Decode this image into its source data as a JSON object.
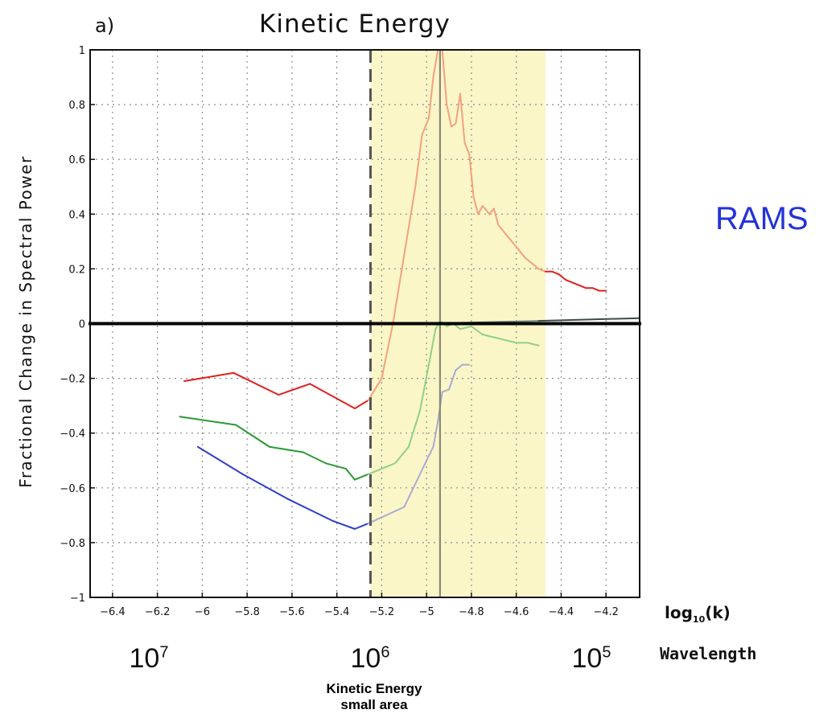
{
  "chart_data": {
    "type": "line",
    "panel_label": "a)",
    "title": "Kinetic Energy",
    "ylabel": "Fractional Change in Spectral Power",
    "xlabel": "log10(k)",
    "ylim": [
      -1,
      1
    ],
    "xlim": [
      -6.5,
      -4.05
    ],
    "yticks": [
      "1",
      "0.8",
      "0.6",
      "0.4",
      "0.2",
      "0",
      "−0.2",
      "−0.4",
      "−0.6",
      "−0.8",
      "−1"
    ],
    "xticks": [
      "−6.4",
      "−6.2",
      "−6",
      "−5.8",
      "−5.6",
      "−5.4",
      "−5.2",
      "−5",
      "−4.8",
      "−4.6",
      "−4.4",
      "−4.2"
    ],
    "grid": true,
    "highlight_band": {
      "x_start": -5.25,
      "x_end": -4.47,
      "color": "#fbf6c8"
    },
    "dashed_vline": -5.25,
    "solid_vline": -4.94,
    "wavelength_axis": {
      "label": "Wavelength",
      "ticks": [
        {
          "x": -7.0,
          "base": "10",
          "exp": "7"
        },
        {
          "x": -6.0,
          "base": "10",
          "exp": "6"
        },
        {
          "x": -5.0,
          "base": "10",
          "exp": "5"
        }
      ]
    },
    "series": [
      {
        "color": "#e0201e",
        "inside_color": "#f4a07e",
        "values": [
          [
            -6.08,
            -0.21
          ],
          [
            -5.86,
            -0.18
          ],
          [
            -5.66,
            -0.26
          ],
          [
            -5.52,
            -0.22
          ],
          [
            -5.32,
            -0.31
          ],
          [
            -5.26,
            -0.28
          ],
          [
            -5.2,
            -0.2
          ],
          [
            -5.15,
            0.0
          ],
          [
            -5.1,
            0.25
          ],
          [
            -5.05,
            0.5
          ],
          [
            -5.02,
            0.69
          ],
          [
            -4.99,
            0.75
          ],
          [
            -4.97,
            0.9
          ],
          [
            -4.95,
            1.0
          ],
          [
            -4.93,
            1.0
          ],
          [
            -4.91,
            0.8
          ],
          [
            -4.89,
            0.72
          ],
          [
            -4.87,
            0.73
          ],
          [
            -4.85,
            0.84
          ],
          [
            -4.83,
            0.66
          ],
          [
            -4.81,
            0.62
          ],
          [
            -4.79,
            0.46
          ],
          [
            -4.77,
            0.4
          ],
          [
            -4.75,
            0.43
          ],
          [
            -4.72,
            0.4
          ],
          [
            -4.7,
            0.42
          ],
          [
            -4.68,
            0.36
          ],
          [
            -4.65,
            0.33
          ],
          [
            -4.62,
            0.3
          ],
          [
            -4.59,
            0.27
          ],
          [
            -4.56,
            0.24
          ],
          [
            -4.53,
            0.22
          ],
          [
            -4.5,
            0.2
          ],
          [
            -4.47,
            0.19
          ],
          [
            -4.44,
            0.19
          ],
          [
            -4.41,
            0.18
          ],
          [
            -4.38,
            0.16
          ],
          [
            -4.35,
            0.15
          ],
          [
            -4.32,
            0.14
          ],
          [
            -4.29,
            0.13
          ],
          [
            -4.26,
            0.13
          ],
          [
            -4.23,
            0.12
          ],
          [
            -4.2,
            0.12
          ]
        ]
      },
      {
        "color": "#2a9a33",
        "inside_color": "#8fd08a",
        "values": [
          [
            -6.1,
            -0.34
          ],
          [
            -5.85,
            -0.37
          ],
          [
            -5.7,
            -0.45
          ],
          [
            -5.55,
            -0.47
          ],
          [
            -5.45,
            -0.51
          ],
          [
            -5.36,
            -0.53
          ],
          [
            -5.32,
            -0.57
          ],
          [
            -5.26,
            -0.55
          ],
          [
            -5.14,
            -0.51
          ],
          [
            -5.08,
            -0.45
          ],
          [
            -5.03,
            -0.32
          ],
          [
            -4.99,
            -0.15
          ],
          [
            -4.96,
            -0.02
          ],
          [
            -4.94,
            0.01
          ],
          [
            -4.91,
            -0.01
          ],
          [
            -4.88,
            0.0
          ],
          [
            -4.85,
            -0.02
          ],
          [
            -4.8,
            -0.01
          ],
          [
            -4.75,
            -0.04
          ],
          [
            -4.7,
            -0.05
          ],
          [
            -4.65,
            -0.06
          ],
          [
            -4.6,
            -0.07
          ],
          [
            -4.55,
            -0.07
          ],
          [
            -4.5,
            -0.08
          ]
        ]
      },
      {
        "color": "#2f3fc8",
        "inside_color": "#a9acd0",
        "values": [
          [
            -6.02,
            -0.45
          ],
          [
            -5.82,
            -0.55
          ],
          [
            -5.62,
            -0.64
          ],
          [
            -5.42,
            -0.72
          ],
          [
            -5.32,
            -0.75
          ],
          [
            -5.26,
            -0.73
          ],
          [
            -5.1,
            -0.67
          ],
          [
            -5.0,
            -0.5
          ],
          [
            -4.97,
            -0.45
          ],
          [
            -4.95,
            -0.36
          ],
          [
            -4.93,
            -0.25
          ],
          [
            -4.9,
            -0.24
          ],
          [
            -4.87,
            -0.17
          ],
          [
            -4.84,
            -0.15
          ],
          [
            -4.81,
            -0.15
          ]
        ]
      },
      {
        "color": "#3b4a4a",
        "inside_color": "#6f8a7e",
        "values": [
          [
            -6.5,
            0.0
          ],
          [
            -5.5,
            0.0
          ],
          [
            -5.0,
            0.0
          ],
          [
            -4.5,
            0.01
          ],
          [
            -4.05,
            0.02
          ]
        ]
      }
    ]
  },
  "side_label": "RAMS",
  "caption": {
    "line1": "Kinetic Energy",
    "line2": "small area"
  }
}
